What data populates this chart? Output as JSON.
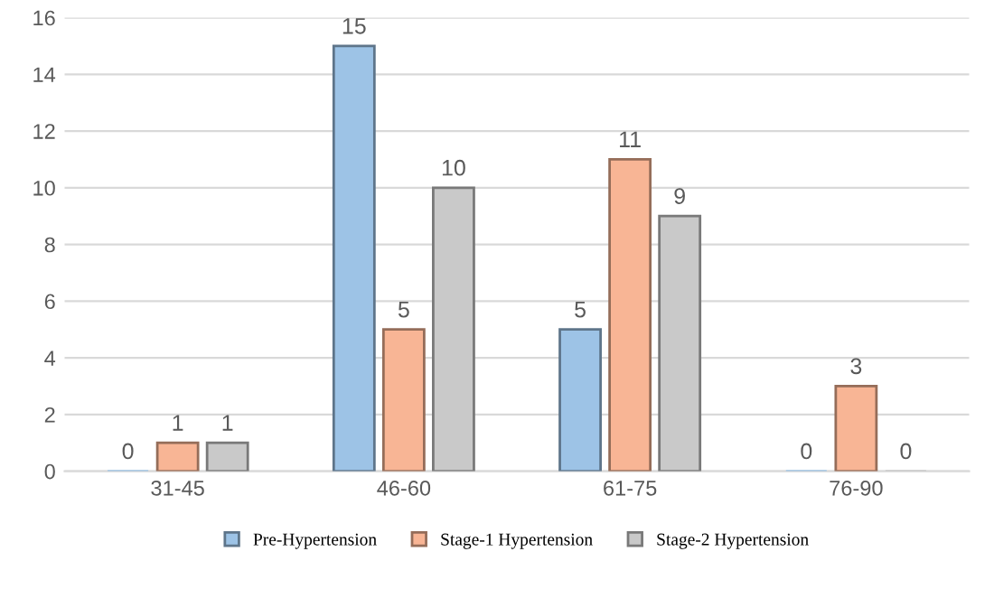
{
  "chart_data": {
    "type": "bar",
    "categories": [
      "31-45",
      "46-60",
      "61-75",
      "76-90"
    ],
    "series": [
      {
        "name": "Pre-Hypertension",
        "color": "#9dc3e6",
        "values": [
          0,
          15,
          5,
          0
        ]
      },
      {
        "name": "Stage-1 Hypertension",
        "color": "#f8b595",
        "values": [
          1,
          5,
          11,
          3
        ]
      },
      {
        "name": "Stage-2 Hypertension",
        "color": "#c9c9c9",
        "values": [
          1,
          10,
          9,
          0
        ]
      }
    ],
    "ylim": [
      0,
      16
    ],
    "yticks": [
      0,
      2,
      4,
      6,
      8,
      10,
      12,
      14,
      16
    ],
    "grid": "y",
    "legend": "bottom",
    "data_labels": true
  }
}
